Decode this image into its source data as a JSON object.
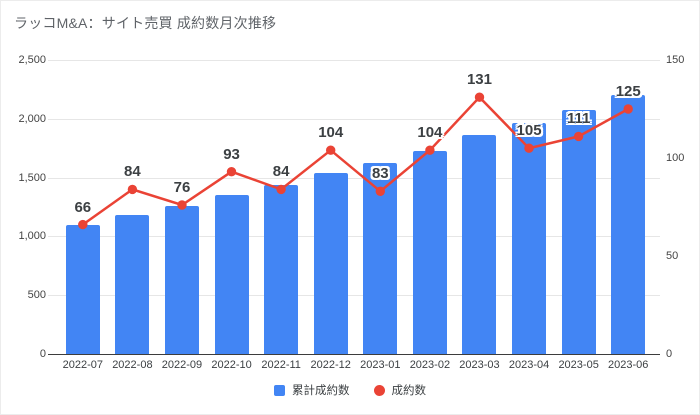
{
  "chart_data": {
    "type": "combo-bar-line",
    "title": "ラッコM&A：サイト売買 成約数月次推移",
    "categories": [
      "2022-07",
      "2022-08",
      "2022-09",
      "2022-10",
      "2022-11",
      "2022-12",
      "2023-01",
      "2023-02",
      "2023-03",
      "2023-04",
      "2023-05",
      "2023-06"
    ],
    "series": [
      {
        "name": "累計成約数",
        "type": "bar",
        "axis": "left",
        "color": "#4285F4",
        "values": [
          1100,
          1184,
          1260,
          1353,
          1437,
          1541,
          1624,
          1728,
          1859,
          1964,
          2075,
          2200
        ]
      },
      {
        "name": "成約数",
        "type": "line",
        "axis": "right",
        "color": "#EA4335",
        "values": [
          66,
          84,
          76,
          93,
          84,
          104,
          83,
          104,
          131,
          105,
          111,
          125
        ],
        "point_labels": [
          "66",
          "84",
          "76",
          "93",
          "84",
          "104",
          "83",
          "104",
          "131",
          "105",
          "111",
          "125"
        ]
      }
    ],
    "left_axis": {
      "min": 0,
      "max": 2500,
      "tick_values": [
        0,
        500,
        1000,
        1500,
        2000,
        2500
      ],
      "tick_labels": [
        "0",
        "500",
        "1,000",
        "1,500",
        "2,000",
        "2,500"
      ]
    },
    "right_axis": {
      "min": 0,
      "max": 150,
      "tick_values": [
        0,
        50,
        100,
        150
      ],
      "tick_labels": [
        "0",
        "50",
        "100",
        "150"
      ]
    },
    "legend": {
      "position": "bottom",
      "entries": [
        {
          "label": "累計成約数",
          "swatch": "square",
          "color": "#4285F4"
        },
        {
          "label": "成約数",
          "swatch": "circle",
          "color": "#EA4335"
        }
      ]
    },
    "grid": true
  },
  "colors": {
    "bar": "#4285F4",
    "line": "#EA4335",
    "gridline": "#e6e6e6",
    "baseline": "#3d3d3d",
    "axis_text": "#444444",
    "data_label_text": "#3c4043",
    "title_text": "#5f6368",
    "background": "#ffffff"
  }
}
